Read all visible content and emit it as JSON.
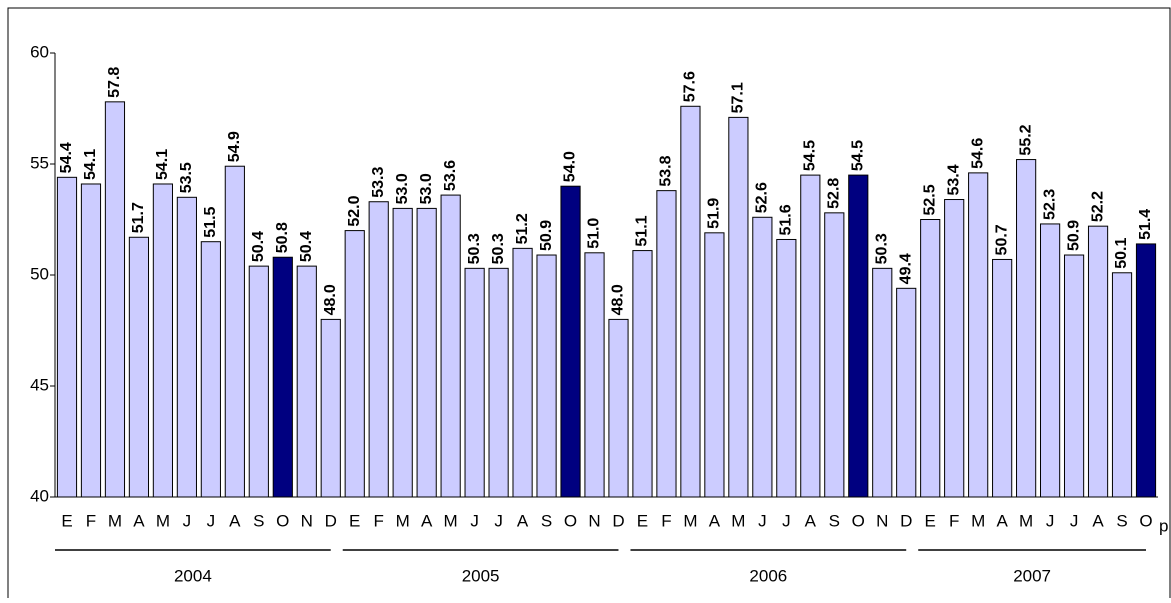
{
  "chart_data": {
    "type": "bar",
    "categories": [
      "E",
      "F",
      "M",
      "A",
      "M",
      "J",
      "J",
      "A",
      "S",
      "O",
      "N",
      "D",
      "E",
      "F",
      "M",
      "A",
      "M",
      "J",
      "J",
      "A",
      "S",
      "O",
      "N",
      "D",
      "E",
      "F",
      "M",
      "A",
      "M",
      "J",
      "J",
      "A",
      "S",
      "O",
      "N",
      "D",
      "E",
      "F",
      "M",
      "A",
      "M",
      "J",
      "J",
      "A",
      "S",
      "O"
    ],
    "values": [
      54.4,
      54.1,
      57.8,
      51.7,
      54.1,
      53.5,
      51.5,
      54.9,
      50.4,
      50.8,
      50.4,
      48.0,
      52.0,
      53.3,
      53.0,
      53.0,
      53.6,
      50.3,
      50.3,
      51.2,
      50.9,
      54.0,
      51.0,
      48.0,
      51.1,
      53.8,
      57.6,
      51.9,
      57.1,
      52.6,
      51.6,
      54.5,
      52.8,
      54.5,
      50.3,
      49.4,
      52.5,
      53.4,
      54.6,
      50.7,
      55.2,
      52.3,
      50.9,
      52.2,
      50.1,
      51.4
    ],
    "value_labels": [
      "54.4",
      "54.1",
      "57.8",
      "51.7",
      "54.1",
      "53.5",
      "51.5",
      "54.9",
      "50.4",
      "50.8",
      "50.4",
      "48.0",
      "52.0",
      "53.3",
      "53.0",
      "53.0",
      "53.6",
      "50.3",
      "50.3",
      "51.2",
      "50.9",
      "54.0",
      "51.0",
      "48.0",
      "51.1",
      "53.8",
      "57.6",
      "51.9",
      "57.1",
      "52.6",
      "51.6",
      "54.5",
      "52.8",
      "54.5",
      "50.3",
      "49.4",
      "52.5",
      "53.4",
      "54.6",
      "50.7",
      "55.2",
      "52.3",
      "50.9",
      "52.2",
      "50.1",
      "51.4"
    ],
    "last_category_note": "p",
    "year_groups": [
      {
        "label": "2004",
        "count": 12
      },
      {
        "label": "2005",
        "count": 12
      },
      {
        "label": "2006",
        "count": 12
      },
      {
        "label": "2007",
        "count": 10
      }
    ],
    "color": "#ccccff",
    "highlight_category": "O",
    "highlight_color": "#000080",
    "ylim": [
      40,
      60
    ],
    "yticks": [
      40,
      45,
      50,
      55,
      60
    ],
    "grid": false
  }
}
